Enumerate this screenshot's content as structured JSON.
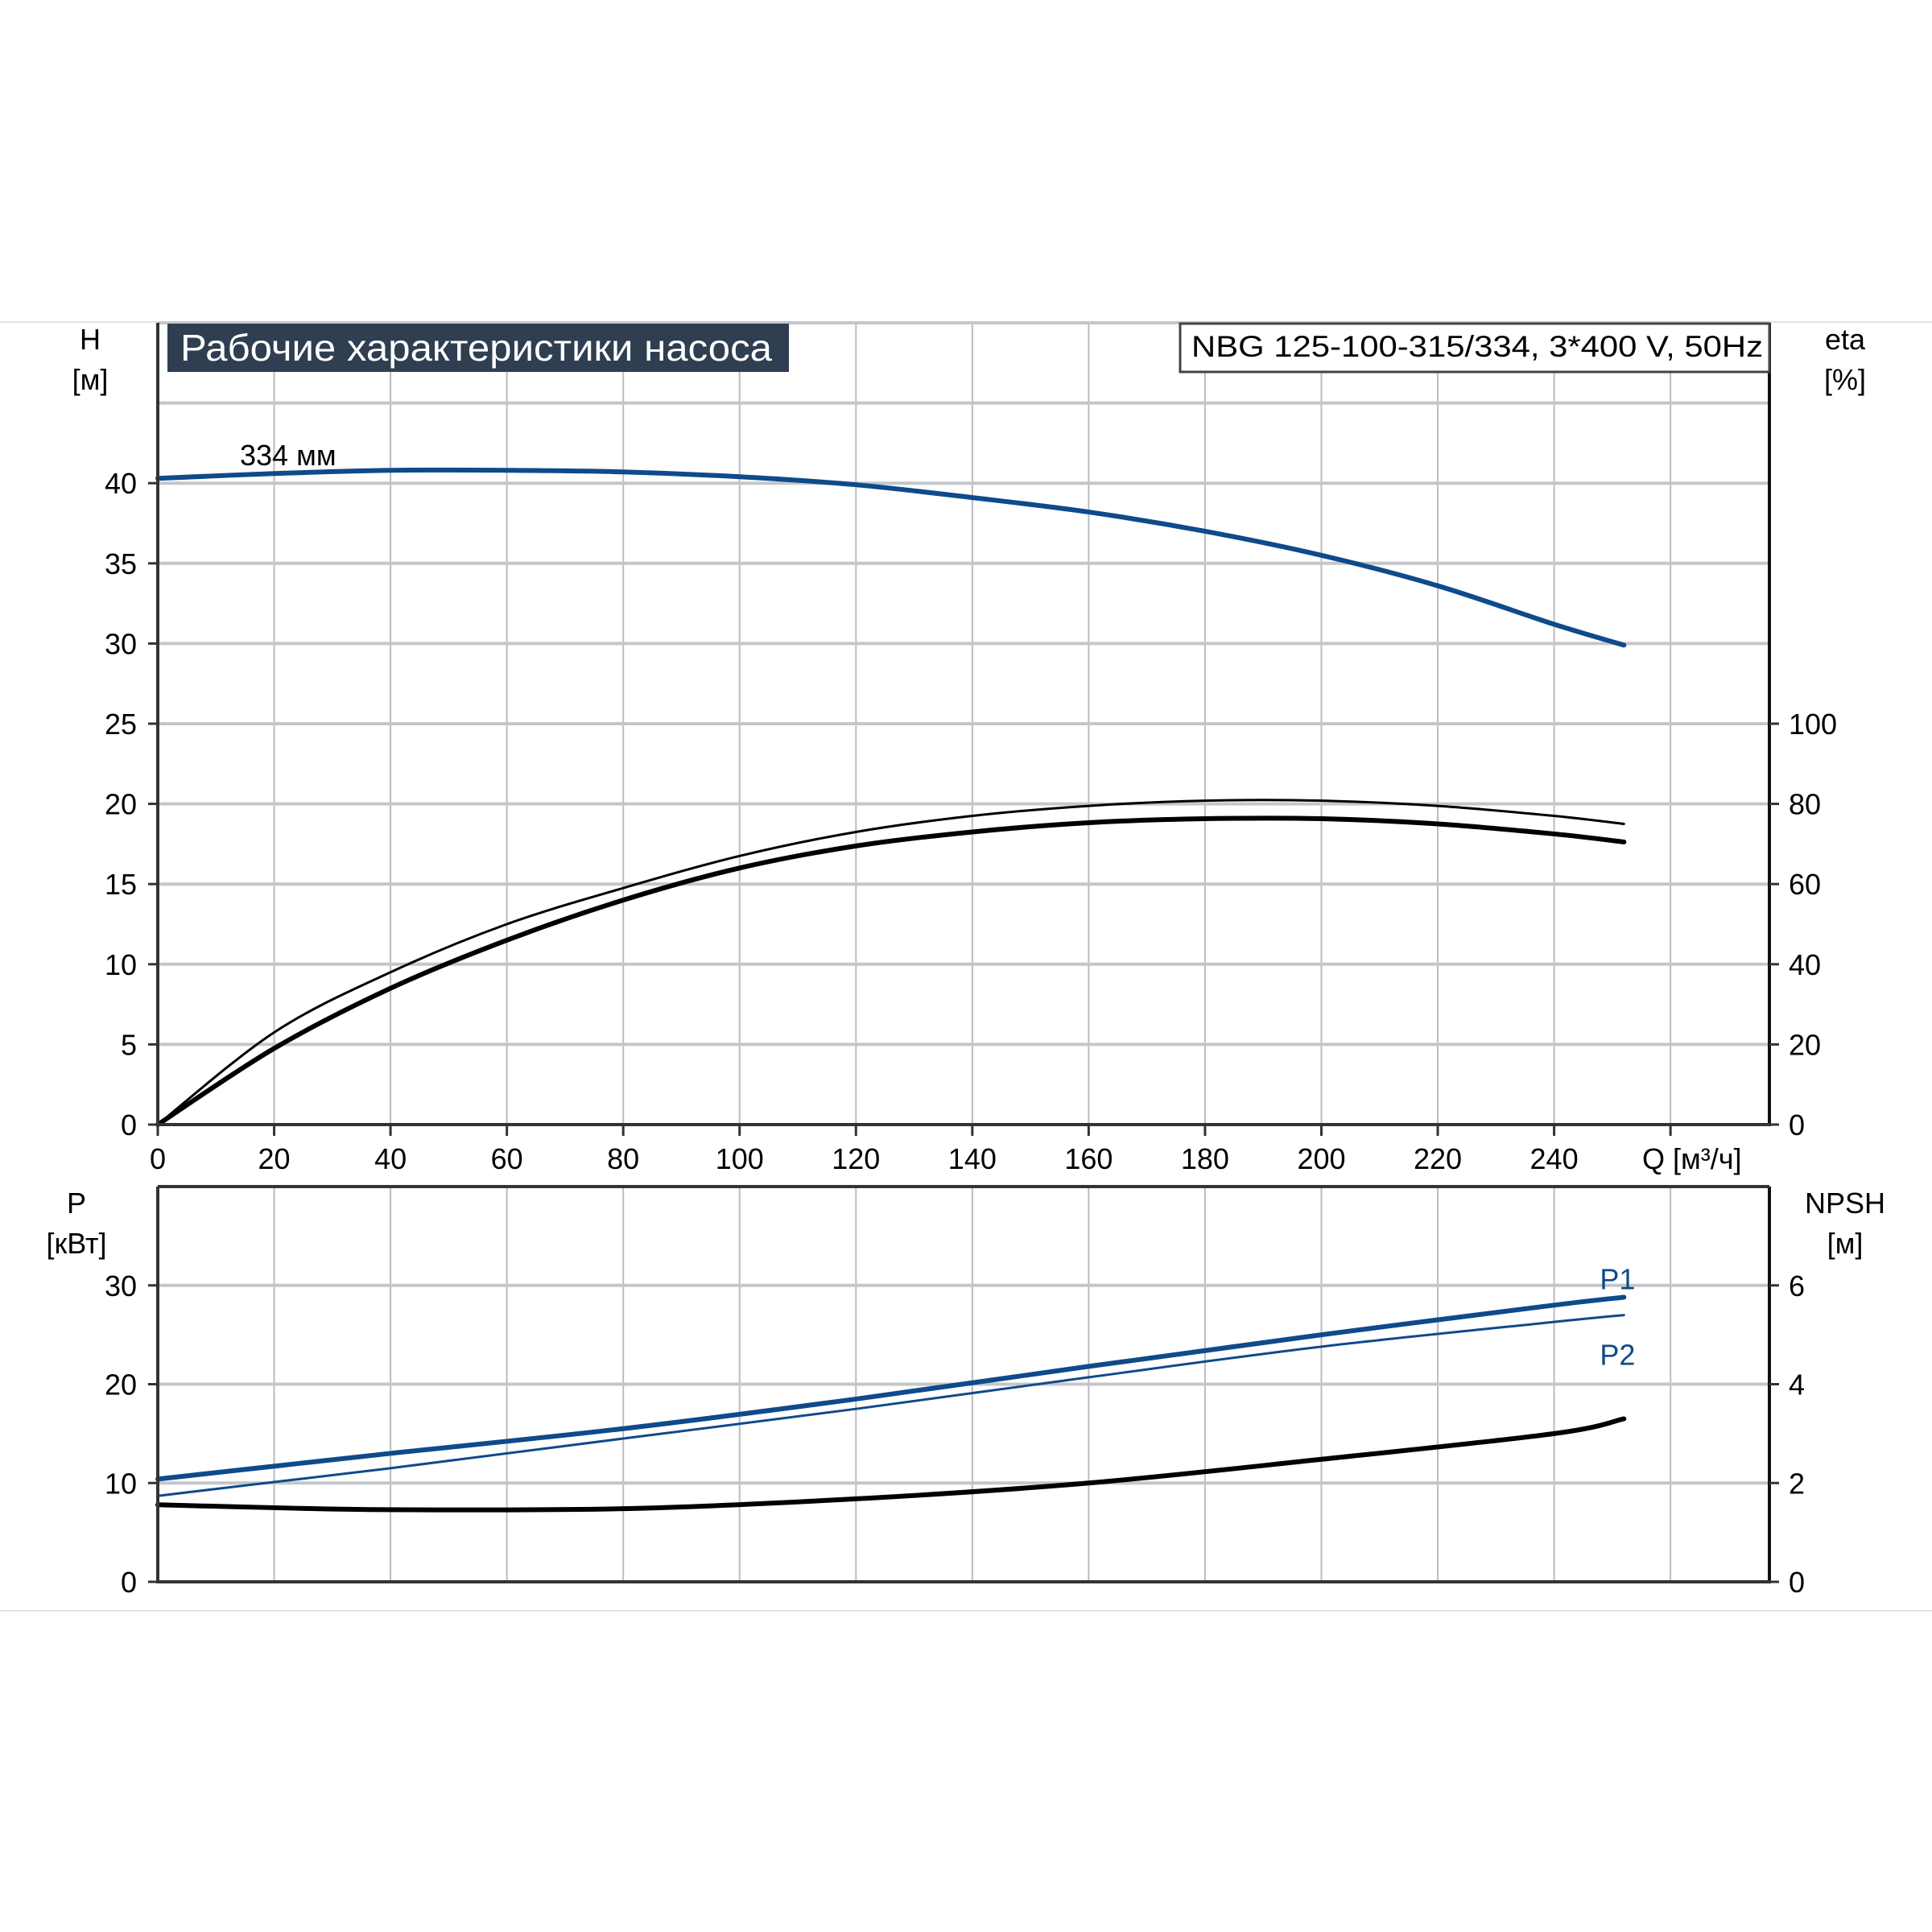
{
  "chart_data": [
    {
      "type": "line",
      "title": "Рабочие характеристики насоса",
      "subtitle": "NBG 125-100-315/334, 3*400 V, 50Hz",
      "xlabel": "Q [м³/ч]",
      "ylabel_left": [
        "H",
        "[м]"
      ],
      "ylabel_right": [
        "eta",
        "[%]"
      ],
      "xlim": [
        0,
        277
      ],
      "ylim_left": [
        0,
        50
      ],
      "ylim_right": [
        0,
        200
      ],
      "x_ticks": [
        "0",
        "20",
        "40",
        "60",
        "80",
        "100",
        "120",
        "140",
        "160",
        "180",
        "200",
        "220",
        "240"
      ],
      "y_ticks_left": [
        "0",
        "5",
        "10",
        "15",
        "20",
        "25",
        "30",
        "35",
        "40"
      ],
      "y_ticks_right": [
        "0",
        "20",
        "40",
        "60",
        "80",
        "100"
      ],
      "grid": true,
      "annotation": "334 мм",
      "colors": {
        "head": "#0f4a8a",
        "efficiency": "#000000",
        "grid": "#b9bcc0",
        "title_bg": "#2f3e50"
      },
      "series": [
        {
          "axis": "left",
          "color": "#0f4a8a",
          "x": [
            0,
            20,
            40,
            60,
            80,
            100,
            120,
            140,
            160,
            180,
            200,
            220,
            240,
            252
          ],
          "y": [
            40.3,
            40.6,
            40.8,
            40.8,
            40.7,
            40.4,
            39.9,
            39.1,
            38.2,
            37.0,
            35.5,
            33.6,
            31.2,
            29.9
          ]
        },
        {
          "axis": "right",
          "color": "#000000",
          "x": [
            0,
            20,
            40,
            60,
            80,
            100,
            120,
            140,
            160,
            180,
            200,
            220,
            240,
            252
          ],
          "y": [
            0,
            23,
            38,
            50,
            59,
            67,
            73,
            77,
            79.5,
            80.8,
            80.8,
            79.5,
            77,
            75
          ]
        },
        {
          "axis": "right",
          "color": "#000000",
          "x": [
            0,
            20,
            40,
            60,
            80,
            100,
            120,
            140,
            160,
            180,
            200,
            220,
            240,
            252
          ],
          "y": [
            0,
            19,
            34,
            46,
            56,
            64,
            69.5,
            73,
            75.3,
            76.3,
            76.3,
            75,
            72.5,
            70.5
          ]
        }
      ]
    },
    {
      "type": "line",
      "ylabel_left": [
        "P",
        "[кВт]"
      ],
      "ylabel_right": [
        "NPSH",
        "[м]"
      ],
      "xlim": [
        0,
        277
      ],
      "ylim_left": [
        0,
        40
      ],
      "ylim_right": [
        0,
        8
      ],
      "y_ticks_left": [
        "0",
        "10",
        "20",
        "30"
      ],
      "y_ticks_right": [
        "0",
        "2",
        "4",
        "6"
      ],
      "grid": true,
      "series": [
        {
          "name": "P1",
          "axis": "left",
          "color": "#0f4a8a",
          "x": [
            0,
            20,
            40,
            80,
            120,
            160,
            200,
            240,
            252
          ],
          "y": [
            10.4,
            11.7,
            13,
            15.5,
            18.5,
            21.8,
            25,
            28,
            28.8
          ]
        },
        {
          "name": "P2",
          "axis": "left",
          "color": "#0f4a8a",
          "x": [
            0,
            20,
            40,
            80,
            120,
            160,
            200,
            240,
            252
          ],
          "y": [
            8.7,
            10.1,
            11.5,
            14.5,
            17.5,
            20.7,
            23.8,
            26.3,
            27
          ]
        },
        {
          "axis": "right",
          "color": "#000000",
          "x": [
            0,
            20,
            40,
            80,
            120,
            160,
            200,
            240,
            252
          ],
          "y": [
            1.56,
            1.5,
            1.46,
            1.48,
            1.68,
            2.0,
            2.48,
            3.0,
            3.3
          ]
        }
      ]
    }
  ]
}
